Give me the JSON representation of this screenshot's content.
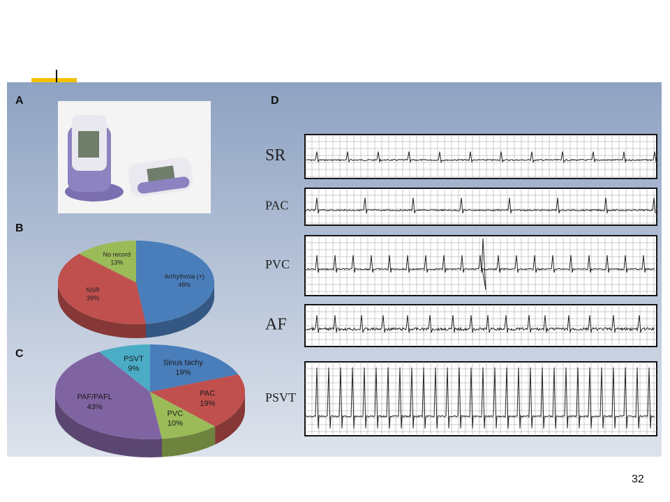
{
  "panels": [
    "A",
    "B",
    "C",
    "D"
  ],
  "ecg_labels": [
    "SR",
    "PAC",
    "PVC",
    "AF",
    "PSVT"
  ],
  "page_number": "32",
  "chart_data": [
    {
      "type": "pie",
      "categories": [
        "Arrhythmia (+)",
        "NSR",
        "No record"
      ],
      "values": [
        48,
        39,
        13
      ],
      "value_labels": [
        "48%",
        "39%",
        "13%"
      ],
      "colors": [
        "#4a7ebb",
        "#c0504d",
        "#9bbb59"
      ]
    },
    {
      "type": "pie",
      "categories": [
        "Sinus tachy",
        "PAC",
        "PVC",
        "PAF/PAFL",
        "PSVT"
      ],
      "values": [
        19,
        19,
        10,
        43,
        9
      ],
      "value_labels": [
        "19%",
        "19%",
        "10%",
        "43%",
        "9%"
      ],
      "colors": [
        "#4a7ebb",
        "#c0504d",
        "#9bbb59",
        "#8064a2",
        "#4bacc6"
      ]
    }
  ]
}
